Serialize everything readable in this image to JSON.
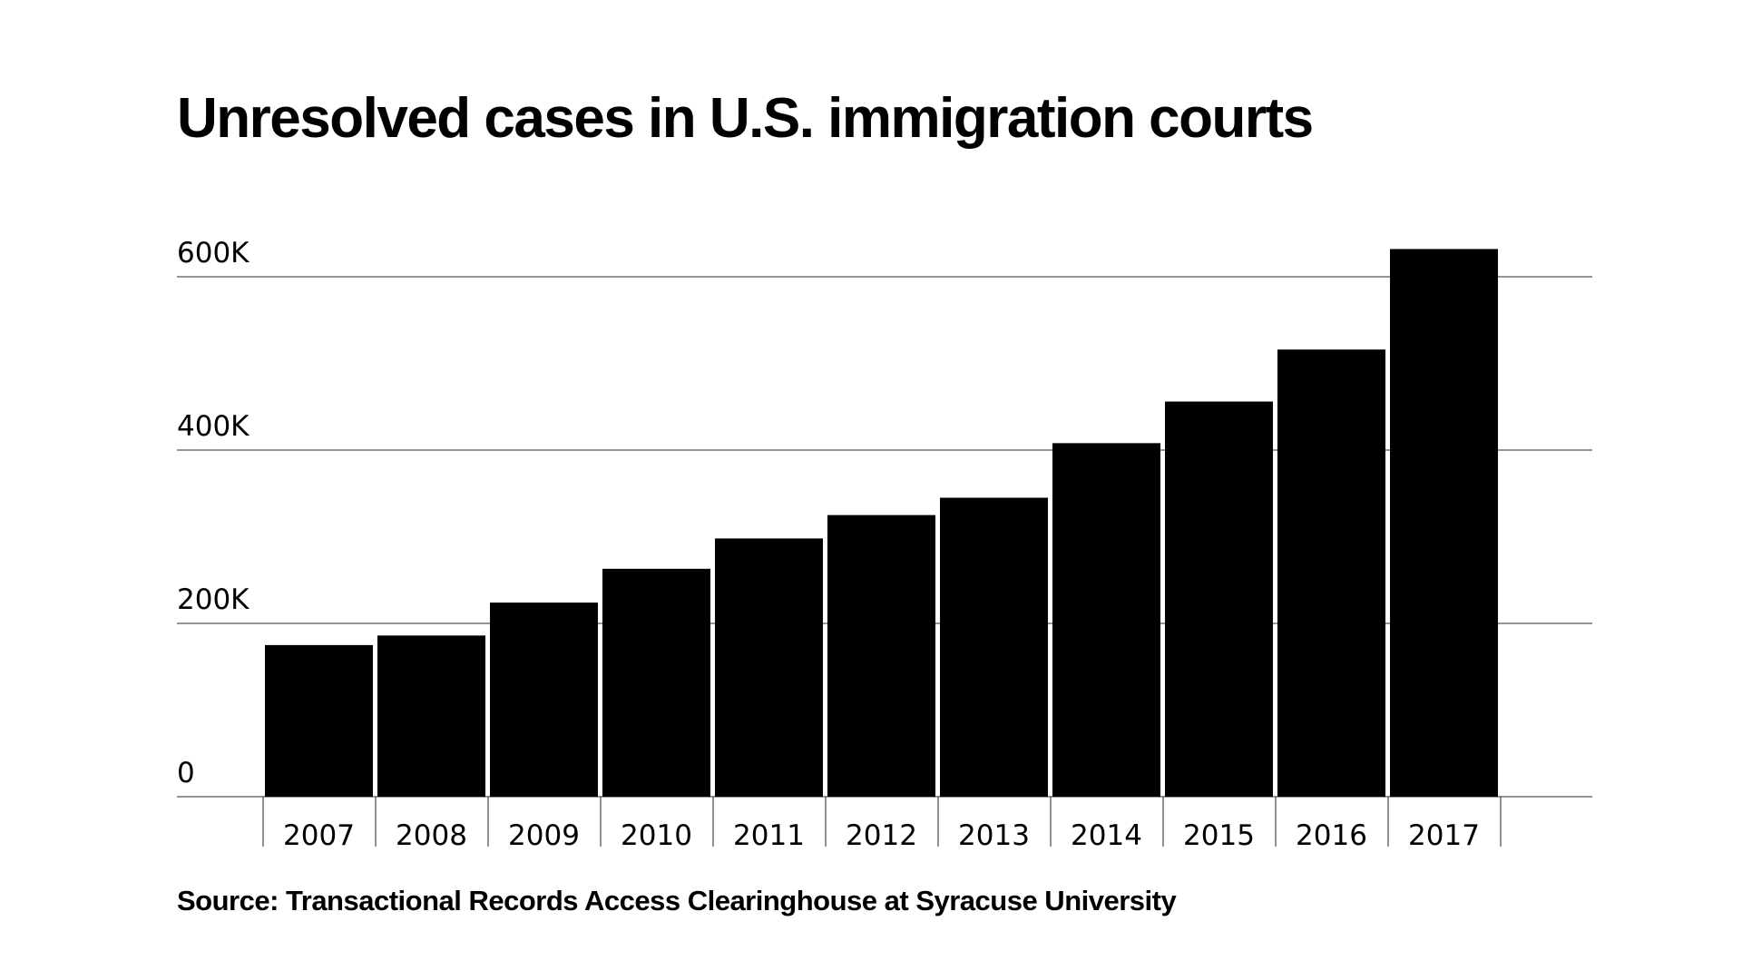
{
  "chart_data": {
    "type": "bar",
    "title": "Unresolved cases in U.S. immigration courts",
    "source": "Source: Transactional Records Access Clearinghouse at Syracuse University",
    "categories": [
      "2007",
      "2008",
      "2009",
      "2010",
      "2011",
      "2012",
      "2013",
      "2014",
      "2015",
      "2016",
      "2017"
    ],
    "values": [
      175000,
      186000,
      224000,
      263000,
      298000,
      325000,
      345000,
      408000,
      456000,
      516000,
      632000
    ],
    "ylim": [
      0,
      600000
    ],
    "yticks": [
      0,
      200000,
      400000,
      600000
    ],
    "ytick_labels": [
      "0",
      "200K",
      "400K",
      "600K"
    ],
    "grid": true,
    "colors": {
      "bar": "#000000",
      "grid": "#555555",
      "background": "#ffffff"
    }
  }
}
